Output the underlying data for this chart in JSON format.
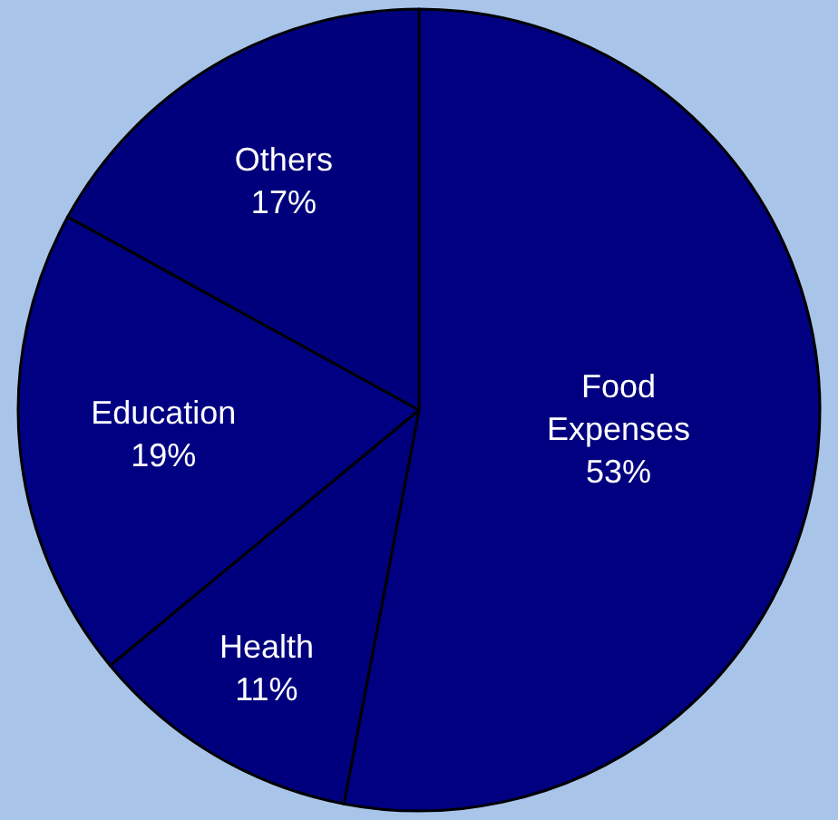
{
  "chart_data": {
    "type": "pie",
    "categories": [
      "Food Expenses",
      "Health",
      "Education",
      "Others"
    ],
    "values": [
      53,
      11,
      19,
      17
    ],
    "value_labels": [
      "53%",
      "11%",
      "19%",
      "17%"
    ],
    "colors": [
      "#000080",
      "#00007e",
      "#000082",
      "#00007c"
    ],
    "legend": false
  }
}
